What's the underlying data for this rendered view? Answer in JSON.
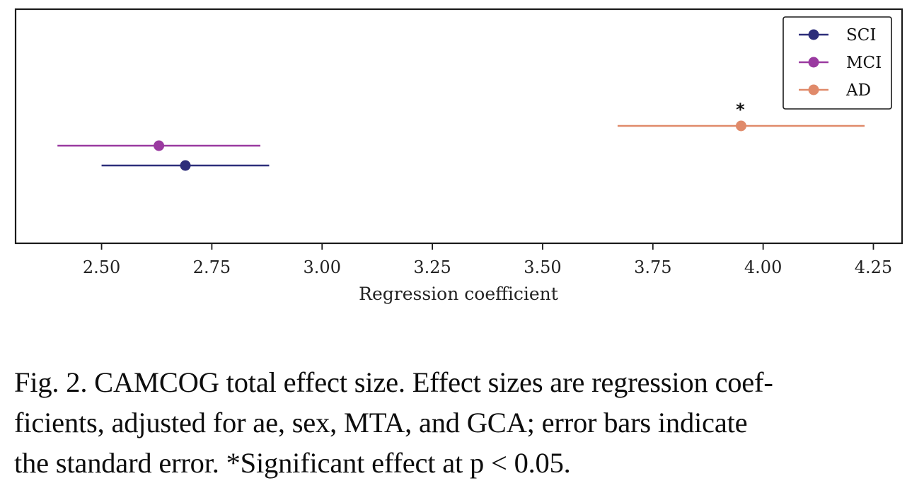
{
  "chart_data": {
    "type": "scatter",
    "orientation": "horizontal",
    "x": {
      "label": "Regression coefficient",
      "range": [
        2.305,
        4.315
      ],
      "ticks": [
        2.5,
        2.75,
        3.0,
        3.25,
        3.5,
        3.75,
        4.0,
        4.25
      ],
      "tick_labels": [
        "2.50",
        "2.75",
        "3.00",
        "3.25",
        "3.50",
        "3.75",
        "4.00",
        "4.25"
      ]
    },
    "y": {
      "label": "",
      "ticks": []
    },
    "grid": false,
    "legend": {
      "placement": "top-right"
    },
    "series": [
      {
        "name": "SCI",
        "color": "#2d2e7a",
        "estimate": 2.69,
        "error_low": 2.5,
        "error_high": 2.88
      },
      {
        "name": "MCI",
        "color": "#9a3aa0",
        "estimate": 2.63,
        "error_low": 2.4,
        "error_high": 2.86
      },
      {
        "name": "AD",
        "color": "#e08a6a",
        "estimate": 3.95,
        "error_low": 3.67,
        "error_high": 4.23,
        "annotation": "*"
      }
    ]
  },
  "caption": {
    "lines": [
      "Fig. 2.  CAMCOG total effect size. Effect sizes are regression coef-",
      "ficients, adjusted for ae, sex, MTA, and GCA; error bars indicate",
      "the standard error. *Significant effect at p < 0.05."
    ]
  }
}
